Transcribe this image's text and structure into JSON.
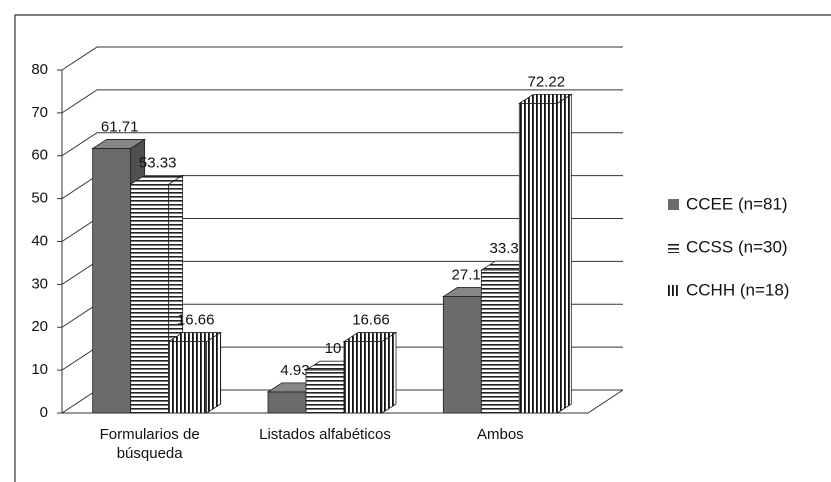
{
  "chart_data": {
    "type": "bar3d",
    "categories": [
      "Formularios de búsqueda",
      "Listados alfabéticos",
      "Ambos"
    ],
    "series": [
      {
        "name": "CCEE (n=81)",
        "color": "#6b6b6b",
        "hatch": "none",
        "values": [
          61.71,
          4.93,
          27.16
        ]
      },
      {
        "name": "CCSS (n=30)",
        "color": "#222222",
        "hatch": "horizontal",
        "values": [
          53.33,
          10,
          33.33
        ]
      },
      {
        "name": "CCHH (n=18)",
        "color": "#111111",
        "hatch": "vertical",
        "values": [
          16.66,
          16.66,
          72.22
        ]
      }
    ],
    "ylim": [
      0,
      80
    ],
    "yticks": [
      0,
      10,
      20,
      30,
      40,
      50,
      60,
      70,
      80
    ],
    "grid": true,
    "legend": "right"
  }
}
